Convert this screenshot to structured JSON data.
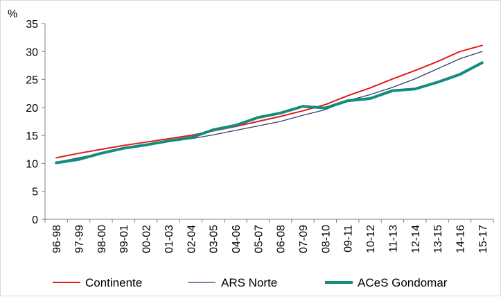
{
  "chart_data": {
    "type": "line",
    "title": "",
    "xlabel": "",
    "ylabel": "%",
    "ylim": [
      0,
      35
    ],
    "yticks": [
      0,
      5,
      10,
      15,
      20,
      25,
      30,
      35
    ],
    "grid": false,
    "legend_position": "bottom",
    "categories": [
      "96-98",
      "97-99",
      "98-00",
      "99-01",
      "00-02",
      "01-03",
      "02-04",
      "03-05",
      "04-06",
      "05-07",
      "06-08",
      "07-09",
      "08-10",
      "09-11",
      "10-12",
      "11-13",
      "12-14",
      "13-15",
      "14-16",
      "15-17"
    ],
    "series": [
      {
        "name": "Continente",
        "color": "#e31a1c",
        "values": [
          11.0,
          11.8,
          12.5,
          13.2,
          13.8,
          14.4,
          15.0,
          15.8,
          16.6,
          17.5,
          18.4,
          19.4,
          20.5,
          22.1,
          23.5,
          25.1,
          26.6,
          28.2,
          30.0,
          31.1
        ]
      },
      {
        "name": "ARS Norte",
        "color": "#2f3f6e",
        "values": [
          10.2,
          11.0,
          11.8,
          12.6,
          13.2,
          13.9,
          14.4,
          15.1,
          15.9,
          16.7,
          17.5,
          18.6,
          19.6,
          21.2,
          22.3,
          23.6,
          25.1,
          26.9,
          28.7,
          30.0
        ]
      },
      {
        "name": "ACeS Gondomar",
        "color": "#138b7e",
        "values": [
          10.1,
          10.7,
          11.8,
          12.7,
          13.3,
          14.0,
          14.6,
          16.0,
          16.8,
          18.2,
          19.0,
          20.2,
          19.9,
          21.2,
          21.6,
          23.0,
          23.3,
          24.5,
          25.9,
          28.0
        ]
      }
    ]
  }
}
